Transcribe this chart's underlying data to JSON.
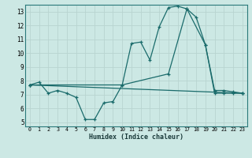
{
  "xlabel": "Humidex (Indice chaleur)",
  "bg_color": "#cce8e4",
  "grid_color": "#b8d4d0",
  "line_color": "#1a6b6b",
  "xlim": [
    -0.5,
    23.5
  ],
  "ylim": [
    4.7,
    13.5
  ],
  "xticks": [
    0,
    1,
    2,
    3,
    4,
    5,
    6,
    7,
    8,
    9,
    10,
    11,
    12,
    13,
    14,
    15,
    16,
    17,
    18,
    19,
    20,
    21,
    22,
    23
  ],
  "yticks": [
    5,
    6,
    7,
    8,
    9,
    10,
    11,
    12,
    13
  ],
  "series1_x": [
    0,
    1,
    2,
    3,
    4,
    5,
    6,
    7,
    8,
    9,
    10,
    11,
    12,
    13,
    14,
    15,
    16,
    17,
    18,
    19,
    20,
    21,
    22,
    23
  ],
  "series1_y": [
    7.7,
    7.9,
    7.1,
    7.3,
    7.1,
    6.8,
    5.2,
    5.2,
    6.4,
    6.5,
    7.7,
    10.7,
    10.8,
    9.5,
    11.9,
    13.3,
    13.4,
    13.2,
    12.6,
    10.6,
    7.1,
    7.1,
    7.1,
    7.1
  ],
  "series2_x": [
    0,
    23
  ],
  "series2_y": [
    7.7,
    7.1
  ],
  "series3_x": [
    0,
    10,
    15,
    17,
    19,
    20,
    21,
    22,
    23
  ],
  "series3_y": [
    7.7,
    7.7,
    8.5,
    13.2,
    10.6,
    7.3,
    7.3,
    7.2,
    7.1
  ]
}
